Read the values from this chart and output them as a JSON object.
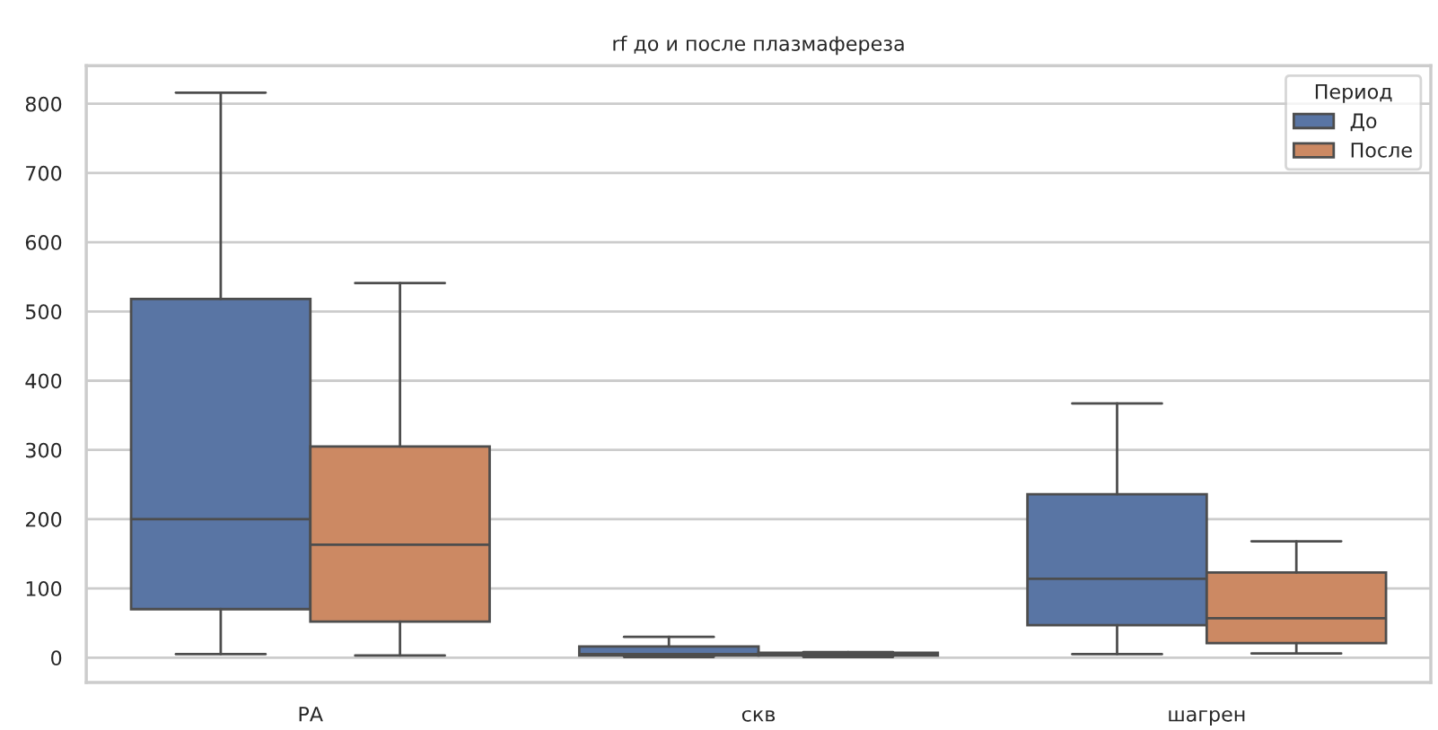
{
  "chart_data": {
    "type": "box",
    "title": "rf до и после плазмафереза",
    "legend_title": "Период",
    "categories": [
      "РА",
      "скв",
      "шагрен"
    ],
    "series": [
      {
        "name": "До",
        "color": "#5975a4",
        "boxes": [
          {
            "low": 5,
            "q1": 70,
            "median": 200,
            "q3": 518,
            "high": 816
          },
          {
            "low": 1,
            "q1": 3,
            "median": 5,
            "q3": 16,
            "high": 30
          },
          {
            "low": 5,
            "q1": 47,
            "median": 114,
            "q3": 236,
            "high": 367
          }
        ]
      },
      {
        "name": "После",
        "color": "#cc8963",
        "boxes": [
          {
            "low": 3,
            "q1": 52,
            "median": 163,
            "q3": 305,
            "high": 541
          },
          {
            "low": 1,
            "q1": 3,
            "median": 5,
            "q3": 7,
            "high": 8
          },
          {
            "low": 6,
            "q1": 21,
            "median": 57,
            "q3": 123,
            "high": 168
          }
        ]
      }
    ],
    "ylim": [
      -36,
      855
    ],
    "yticks": [
      0,
      100,
      200,
      300,
      400,
      500,
      600,
      700,
      800
    ],
    "grid": "y",
    "legend": "top right"
  }
}
